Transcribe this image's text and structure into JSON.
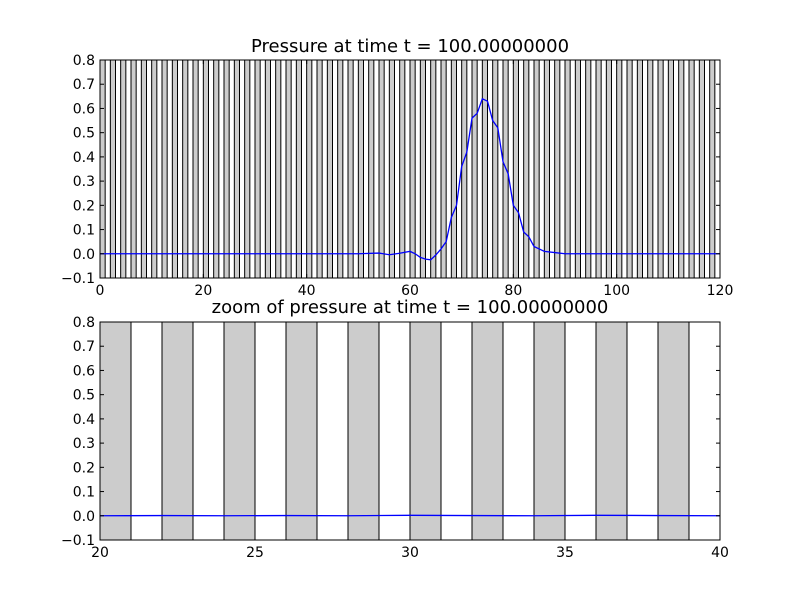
{
  "colors": {
    "background": "#ffffff",
    "band_fill": "#cccccc",
    "band_edge": "#000000",
    "line": "#0000ff",
    "axes": "#000000"
  },
  "chart_data": [
    {
      "type": "line",
      "title": "Pressure at time t =   100.00000000",
      "xlabel": "",
      "ylabel": "",
      "xlim": [
        0,
        120
      ],
      "ylim": [
        -0.1,
        0.8
      ],
      "xticks": [
        0,
        20,
        40,
        60,
        80,
        100,
        120
      ],
      "xtick_labels": [
        "0",
        "20",
        "40",
        "60",
        "80",
        "100",
        "120"
      ],
      "yticks": [
        -0.1,
        0.0,
        0.1,
        0.2,
        0.3,
        0.4,
        0.5,
        0.6,
        0.7,
        0.8
      ],
      "ytick_labels": [
        "−0.1",
        "0.0",
        "0.1",
        "0.2",
        "0.3",
        "0.4",
        "0.5",
        "0.6",
        "0.7",
        "0.8"
      ],
      "grid": false,
      "legend": "none",
      "cell_bands": {
        "start": 0,
        "end": 120,
        "width": 1,
        "every": 2
      },
      "series": [
        {
          "x": [
            0,
            10,
            20,
            30,
            40,
            50,
            54,
            56,
            58,
            60,
            61,
            62,
            63,
            64,
            65,
            66,
            67,
            68,
            69,
            70,
            71,
            72,
            73,
            74,
            75,
            76,
            77,
            78,
            79,
            80,
            81,
            82,
            83,
            84,
            85,
            86,
            88,
            90,
            100,
            110,
            120
          ],
          "y": [
            0,
            0,
            0,
            0,
            0,
            0,
            0.003,
            -0.004,
            0.002,
            0.01,
            0.0,
            -0.015,
            -0.022,
            -0.025,
            -0.005,
            0.02,
            0.05,
            0.15,
            0.2,
            0.36,
            0.42,
            0.56,
            0.58,
            0.64,
            0.63,
            0.55,
            0.52,
            0.38,
            0.33,
            0.2,
            0.17,
            0.09,
            0.07,
            0.03,
            0.02,
            0.01,
            0.005,
            0,
            0,
            0,
            0
          ]
        }
      ]
    },
    {
      "type": "line",
      "title": "zoom of pressure at time t =   100.00000000",
      "xlabel": "",
      "ylabel": "",
      "xlim": [
        20,
        40
      ],
      "ylim": [
        -0.1,
        0.8
      ],
      "xticks": [
        20,
        25,
        30,
        35,
        40
      ],
      "xtick_labels": [
        "20",
        "25",
        "30",
        "35",
        "40"
      ],
      "yticks": [
        -0.1,
        0.0,
        0.1,
        0.2,
        0.3,
        0.4,
        0.5,
        0.6,
        0.7,
        0.8
      ],
      "ytick_labels": [
        "−0.1",
        "0.0",
        "0.1",
        "0.2",
        "0.3",
        "0.4",
        "0.5",
        "0.6",
        "0.7",
        "0.8"
      ],
      "grid": false,
      "legend": "none",
      "cell_bands": {
        "start": 20,
        "end": 40,
        "width": 1,
        "every": 2
      },
      "series": [
        {
          "x": [
            20,
            22,
            24,
            26,
            28,
            30,
            32,
            34,
            36,
            38,
            40
          ],
          "y": [
            0,
            0.001,
            0,
            0.001,
            0,
            0.002,
            0.001,
            0,
            0.002,
            0.001,
            0
          ]
        }
      ]
    }
  ]
}
